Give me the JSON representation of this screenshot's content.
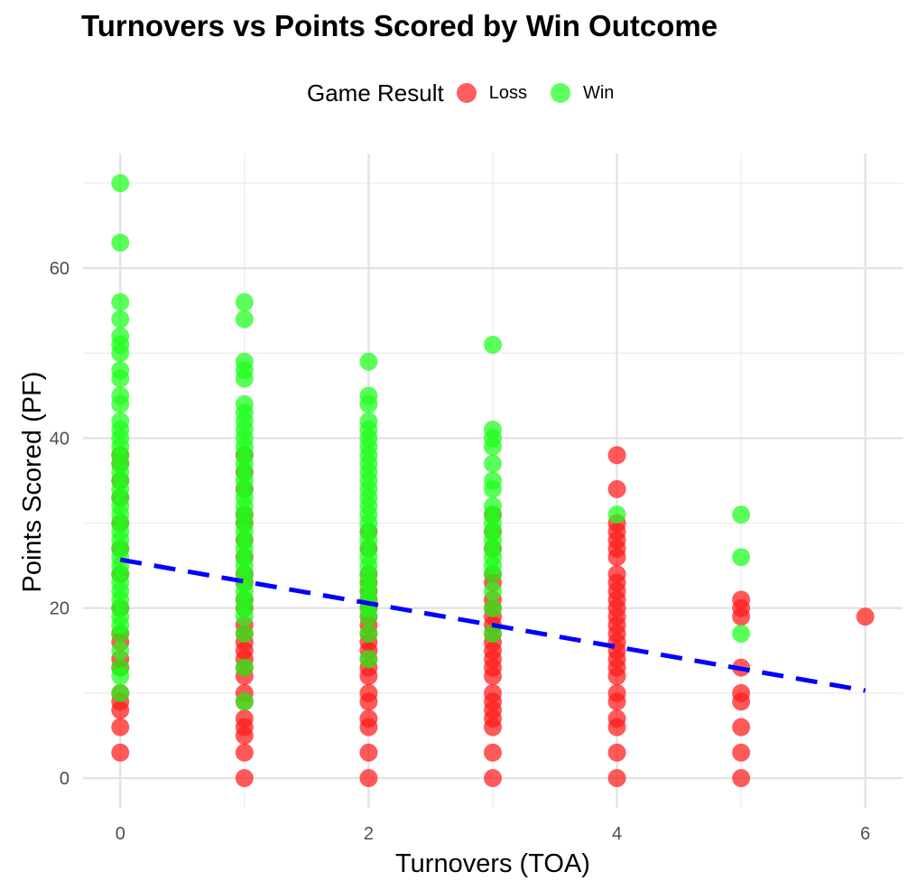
{
  "chart_data": {
    "type": "scatter",
    "title": "Turnovers vs Points Scored by Win Outcome",
    "xlabel": "Turnovers (TOA)",
    "ylabel": "Points Scored (PF)",
    "xlim": [
      -0.3,
      6.3
    ],
    "ylim": [
      -3.5,
      73.5
    ],
    "x_ticks": [
      0,
      2,
      4,
      6
    ],
    "y_ticks": [
      0,
      20,
      40,
      60
    ],
    "grid": true,
    "legend": {
      "title": "Game Result",
      "placement": "top"
    },
    "series": [
      {
        "name": "Loss",
        "color": "#ff1a1a",
        "points": [
          [
            0,
            3
          ],
          [
            0,
            6
          ],
          [
            0,
            8
          ],
          [
            0,
            9
          ],
          [
            0,
            10
          ],
          [
            0,
            13
          ],
          [
            0,
            14
          ],
          [
            0,
            16
          ],
          [
            0,
            17
          ],
          [
            0,
            20
          ],
          [
            0,
            24
          ],
          [
            0,
            27
          ],
          [
            0,
            30
          ],
          [
            0,
            33
          ],
          [
            0,
            35
          ],
          [
            0,
            37
          ],
          [
            0,
            38
          ],
          [
            1,
            0
          ],
          [
            1,
            3
          ],
          [
            1,
            5
          ],
          [
            1,
            6
          ],
          [
            1,
            7
          ],
          [
            1,
            9
          ],
          [
            1,
            10
          ],
          [
            1,
            12
          ],
          [
            1,
            13
          ],
          [
            1,
            14
          ],
          [
            1,
            15
          ],
          [
            1,
            16
          ],
          [
            1,
            17
          ],
          [
            1,
            18
          ],
          [
            1,
            20
          ],
          [
            1,
            21
          ],
          [
            1,
            23
          ],
          [
            1,
            24
          ],
          [
            1,
            26
          ],
          [
            1,
            28
          ],
          [
            1,
            30
          ],
          [
            1,
            31
          ],
          [
            1,
            34
          ],
          [
            1,
            36
          ],
          [
            1,
            38
          ],
          [
            2,
            0
          ],
          [
            2,
            3
          ],
          [
            2,
            6
          ],
          [
            2,
            7
          ],
          [
            2,
            9
          ],
          [
            2,
            10
          ],
          [
            2,
            12
          ],
          [
            2,
            13
          ],
          [
            2,
            14
          ],
          [
            2,
            15
          ],
          [
            2,
            16
          ],
          [
            2,
            17
          ],
          [
            2,
            18
          ],
          [
            2,
            19
          ],
          [
            2,
            20
          ],
          [
            2,
            21
          ],
          [
            2,
            22
          ],
          [
            2,
            23
          ],
          [
            2,
            24
          ],
          [
            2,
            27
          ],
          [
            2,
            29
          ],
          [
            3,
            0
          ],
          [
            3,
            3
          ],
          [
            3,
            6
          ],
          [
            3,
            7
          ],
          [
            3,
            8
          ],
          [
            3,
            9
          ],
          [
            3,
            10
          ],
          [
            3,
            12
          ],
          [
            3,
            13
          ],
          [
            3,
            14
          ],
          [
            3,
            15
          ],
          [
            3,
            16
          ],
          [
            3,
            17
          ],
          [
            3,
            18
          ],
          [
            3,
            19
          ],
          [
            3,
            20
          ],
          [
            3,
            21
          ],
          [
            3,
            23
          ],
          [
            3,
            24
          ],
          [
            3,
            27
          ],
          [
            3,
            29
          ],
          [
            3,
            31
          ],
          [
            4,
            0
          ],
          [
            4,
            3
          ],
          [
            4,
            6
          ],
          [
            4,
            7
          ],
          [
            4,
            9
          ],
          [
            4,
            10
          ],
          [
            4,
            12
          ],
          [
            4,
            13
          ],
          [
            4,
            14
          ],
          [
            4,
            15
          ],
          [
            4,
            16
          ],
          [
            4,
            17
          ],
          [
            4,
            18
          ],
          [
            4,
            19
          ],
          [
            4,
            20
          ],
          [
            4,
            21
          ],
          [
            4,
            22
          ],
          [
            4,
            23
          ],
          [
            4,
            24
          ],
          [
            4,
            26
          ],
          [
            4,
            27
          ],
          [
            4,
            28
          ],
          [
            4,
            29
          ],
          [
            4,
            30
          ],
          [
            4,
            34
          ],
          [
            4,
            38
          ],
          [
            5,
            0
          ],
          [
            5,
            3
          ],
          [
            5,
            6
          ],
          [
            5,
            9
          ],
          [
            5,
            10
          ],
          [
            5,
            13
          ],
          [
            5,
            19
          ],
          [
            5,
            20
          ],
          [
            5,
            21
          ],
          [
            6,
            19
          ]
        ]
      },
      {
        "name": "Win",
        "color": "#1aff1a",
        "points": [
          [
            0,
            10
          ],
          [
            0,
            12
          ],
          [
            0,
            13
          ],
          [
            0,
            15
          ],
          [
            0,
            17
          ],
          [
            0,
            18
          ],
          [
            0,
            19
          ],
          [
            0,
            20
          ],
          [
            0,
            21
          ],
          [
            0,
            22
          ],
          [
            0,
            23
          ],
          [
            0,
            24
          ],
          [
            0,
            25
          ],
          [
            0,
            26
          ],
          [
            0,
            27
          ],
          [
            0,
            28
          ],
          [
            0,
            29
          ],
          [
            0,
            30
          ],
          [
            0,
            31
          ],
          [
            0,
            32
          ],
          [
            0,
            33
          ],
          [
            0,
            34
          ],
          [
            0,
            35
          ],
          [
            0,
            36
          ],
          [
            0,
            37
          ],
          [
            0,
            38
          ],
          [
            0,
            39
          ],
          [
            0,
            40
          ],
          [
            0,
            41
          ],
          [
            0,
            42
          ],
          [
            0,
            44
          ],
          [
            0,
            45
          ],
          [
            0,
            47
          ],
          [
            0,
            48
          ],
          [
            0,
            50
          ],
          [
            0,
            51
          ],
          [
            0,
            52
          ],
          [
            0,
            54
          ],
          [
            0,
            56
          ],
          [
            0,
            63
          ],
          [
            0,
            70
          ],
          [
            1,
            9
          ],
          [
            1,
            13
          ],
          [
            1,
            17
          ],
          [
            1,
            19
          ],
          [
            1,
            20
          ],
          [
            1,
            21
          ],
          [
            1,
            22
          ],
          [
            1,
            23
          ],
          [
            1,
            24
          ],
          [
            1,
            25
          ],
          [
            1,
            26
          ],
          [
            1,
            27
          ],
          [
            1,
            28
          ],
          [
            1,
            29
          ],
          [
            1,
            30
          ],
          [
            1,
            31
          ],
          [
            1,
            32
          ],
          [
            1,
            33
          ],
          [
            1,
            34
          ],
          [
            1,
            35
          ],
          [
            1,
            36
          ],
          [
            1,
            37
          ],
          [
            1,
            38
          ],
          [
            1,
            39
          ],
          [
            1,
            40
          ],
          [
            1,
            41
          ],
          [
            1,
            42
          ],
          [
            1,
            43
          ],
          [
            1,
            44
          ],
          [
            1,
            47
          ],
          [
            1,
            48
          ],
          [
            1,
            49
          ],
          [
            1,
            54
          ],
          [
            1,
            56
          ],
          [
            2,
            14
          ],
          [
            2,
            17
          ],
          [
            2,
            19
          ],
          [
            2,
            20
          ],
          [
            2,
            21
          ],
          [
            2,
            22
          ],
          [
            2,
            23
          ],
          [
            2,
            24
          ],
          [
            2,
            25
          ],
          [
            2,
            26
          ],
          [
            2,
            27
          ],
          [
            2,
            28
          ],
          [
            2,
            29
          ],
          [
            2,
            30
          ],
          [
            2,
            31
          ],
          [
            2,
            32
          ],
          [
            2,
            33
          ],
          [
            2,
            34
          ],
          [
            2,
            35
          ],
          [
            2,
            36
          ],
          [
            2,
            37
          ],
          [
            2,
            38
          ],
          [
            2,
            39
          ],
          [
            2,
            40
          ],
          [
            2,
            41
          ],
          [
            2,
            42
          ],
          [
            2,
            44
          ],
          [
            2,
            45
          ],
          [
            2,
            49
          ],
          [
            3,
            17
          ],
          [
            3,
            20
          ],
          [
            3,
            22
          ],
          [
            3,
            24
          ],
          [
            3,
            25
          ],
          [
            3,
            26
          ],
          [
            3,
            27
          ],
          [
            3,
            28
          ],
          [
            3,
            29
          ],
          [
            3,
            30
          ],
          [
            3,
            31
          ],
          [
            3,
            32
          ],
          [
            3,
            34
          ],
          [
            3,
            35
          ],
          [
            3,
            37
          ],
          [
            3,
            39
          ],
          [
            3,
            40
          ],
          [
            3,
            41
          ],
          [
            3,
            51
          ],
          [
            4,
            31
          ],
          [
            5,
            17
          ],
          [
            5,
            26
          ],
          [
            5,
            31
          ]
        ]
      }
    ],
    "trend_line": {
      "type": "linear fit",
      "color": "#0000ff",
      "style": "dashed",
      "x": [
        0,
        6
      ],
      "y": [
        25.7,
        10.3
      ]
    }
  }
}
